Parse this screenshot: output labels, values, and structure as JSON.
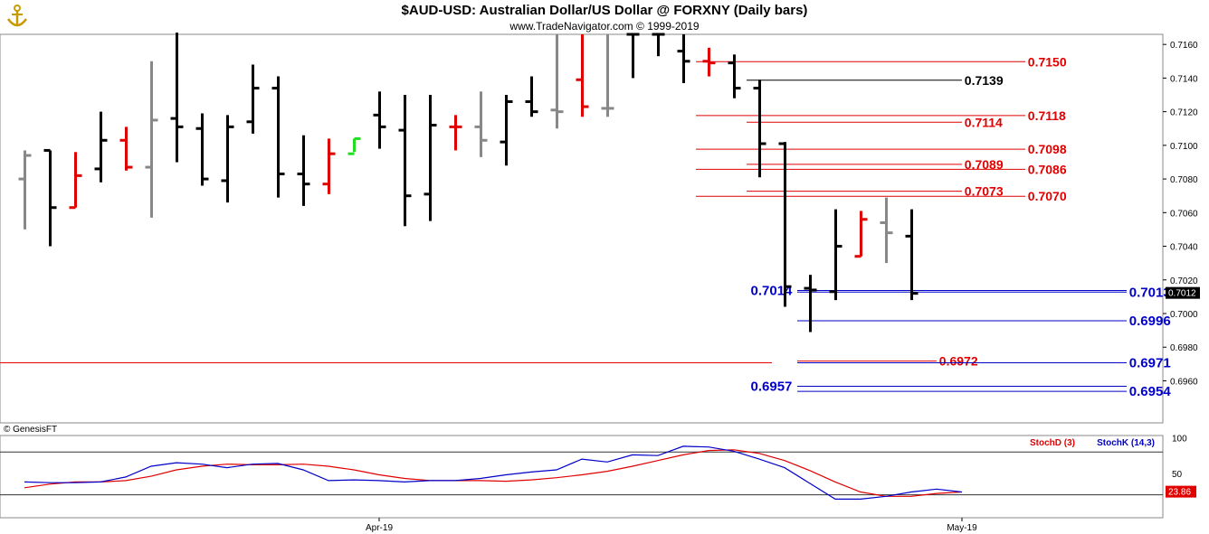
{
  "header": {
    "title": "$AUD-USD:  Australian Dollar/US Dollar @ FORXNY  (Daily bars)",
    "subtitle": "www.TradeNavigator.com © 1999-2019",
    "logo_icon": "trade-navigator-anchor-icon"
  },
  "footer": {
    "copyright": "© GenesisFT"
  },
  "colors": {
    "black_bar": "#000000",
    "red_bar": "#e00000",
    "gray_bar": "#888888",
    "green_bar": "#22dd22",
    "red_level": "#e00000",
    "black_level": "#000000",
    "blue_level": "#0000c8",
    "stochD": "#e00000",
    "stochK": "#0000c8",
    "purple_level": "#800080"
  },
  "chart_data": [
    {
      "type": "ohlc",
      "y_range": [
        0.6935,
        0.7166
      ],
      "y_ticks": [
        "0.7160",
        "0.7140",
        "0.7120",
        "0.7100",
        "0.7080",
        "0.7060",
        "0.7040",
        "0.7020",
        "0.7000",
        "0.6980",
        "0.6960"
      ],
      "x_labels": [
        {
          "label": "Apr-19",
          "index": 14
        },
        {
          "label": "May-19",
          "index": 37
        }
      ],
      "last_price": "0.7012",
      "bars": [
        {
          "o": 0.708,
          "h": 0.7097,
          "l": 0.705,
          "c": 0.7094,
          "col": "gray"
        },
        {
          "o": 0.7097,
          "h": 0.7097,
          "l": 0.704,
          "c": 0.7063,
          "col": "black"
        },
        {
          "o": 0.7063,
          "h": 0.7096,
          "l": 0.7063,
          "c": 0.7082,
          "col": "red"
        },
        {
          "o": 0.7086,
          "h": 0.712,
          "l": 0.7078,
          "c": 0.7103,
          "col": "black"
        },
        {
          "o": 0.7103,
          "h": 0.7111,
          "l": 0.7085,
          "c": 0.7087,
          "col": "red"
        },
        {
          "o": 0.7087,
          "h": 0.715,
          "l": 0.7057,
          "c": 0.7115,
          "col": "gray"
        },
        {
          "o": 0.7116,
          "h": 0.7167,
          "l": 0.709,
          "c": 0.7111,
          "col": "black"
        },
        {
          "o": 0.711,
          "h": 0.7119,
          "l": 0.7076,
          "c": 0.708,
          "col": "black"
        },
        {
          "o": 0.7079,
          "h": 0.7118,
          "l": 0.7066,
          "c": 0.7111,
          "col": "black"
        },
        {
          "o": 0.7114,
          "h": 0.7148,
          "l": 0.7107,
          "c": 0.7134,
          "col": "black"
        },
        {
          "o": 0.7134,
          "h": 0.7141,
          "l": 0.7069,
          "c": 0.7083,
          "col": "black"
        },
        {
          "o": 0.7083,
          "h": 0.7106,
          "l": 0.7064,
          "c": 0.7077,
          "col": "black"
        },
        {
          "o": 0.7077,
          "h": 0.7104,
          "l": 0.7071,
          "c": 0.7095,
          "col": "red"
        },
        {
          "o": 0.7095,
          "h": 0.7104,
          "l": 0.7096,
          "c": 0.7104,
          "col": "green"
        },
        {
          "o": 0.7118,
          "h": 0.7132,
          "l": 0.7098,
          "c": 0.7111,
          "col": "black"
        },
        {
          "o": 0.7109,
          "h": 0.713,
          "l": 0.7052,
          "c": 0.707,
          "col": "black"
        },
        {
          "o": 0.7071,
          "h": 0.713,
          "l": 0.7055,
          "c": 0.7112,
          "col": "black"
        },
        {
          "o": 0.7111,
          "h": 0.7118,
          "l": 0.7097,
          "c": 0.7111,
          "col": "red"
        },
        {
          "o": 0.7111,
          "h": 0.7132,
          "l": 0.7093,
          "c": 0.7103,
          "col": "gray"
        },
        {
          "o": 0.7102,
          "h": 0.713,
          "l": 0.7088,
          "c": 0.7126,
          "col": "black"
        },
        {
          "o": 0.7126,
          "h": 0.7141,
          "l": 0.7117,
          "c": 0.712,
          "col": "black"
        },
        {
          "o": 0.7121,
          "h": 0.7166,
          "l": 0.711,
          "c": 0.712,
          "col": "gray"
        },
        {
          "o": 0.7139,
          "h": 0.7166,
          "l": 0.7117,
          "c": 0.7123,
          "col": "red"
        },
        {
          "o": 0.7122,
          "h": 0.7166,
          "l": 0.7117,
          "c": 0.7122,
          "col": "gray"
        },
        {
          "o": 0.7166,
          "h": 0.7166,
          "l": 0.714,
          "c": 0.7166,
          "col": "black"
        },
        {
          "o": 0.7166,
          "h": 0.7166,
          "l": 0.7153,
          "c": 0.7166,
          "col": "black"
        },
        {
          "o": 0.7156,
          "h": 0.7166,
          "l": 0.7137,
          "c": 0.715,
          "col": "black"
        },
        {
          "o": 0.715,
          "h": 0.7158,
          "l": 0.7141,
          "c": 0.7149,
          "col": "red"
        },
        {
          "o": 0.7149,
          "h": 0.7154,
          "l": 0.7128,
          "c": 0.7134,
          "col": "black"
        },
        {
          "o": 0.7134,
          "h": 0.7139,
          "l": 0.7081,
          "c": 0.7101,
          "col": "black"
        },
        {
          "o": 0.7101,
          "h": 0.7102,
          "l": 0.7004,
          "c": 0.7016,
          "col": "black"
        },
        {
          "o": 0.7015,
          "h": 0.7023,
          "l": 0.6989,
          "c": 0.7014,
          "col": "black"
        },
        {
          "o": 0.7013,
          "h": 0.7062,
          "l": 0.7008,
          "c": 0.704,
          "col": "black"
        },
        {
          "o": 0.7034,
          "h": 0.7061,
          "l": 0.7034,
          "c": 0.7056,
          "col": "red"
        },
        {
          "o": 0.7054,
          "h": 0.7069,
          "l": 0.703,
          "c": 0.7048,
          "col": "gray"
        },
        {
          "o": 0.7046,
          "h": 0.7062,
          "l": 0.7008,
          "c": 0.7012,
          "col": "black"
        }
      ],
      "levels": [
        {
          "price": 0.6971,
          "label": "",
          "color": "red",
          "from": -1,
          "to": 29.5,
          "label_at": -1,
          "label_side": "none"
        },
        {
          "price": 0.715,
          "label": "0.7150",
          "color": "red",
          "from": 26.5,
          "to": 39.5,
          "label_at": 39.6,
          "label_side": "right"
        },
        {
          "price": 0.7139,
          "label": "0.7139",
          "color": "black",
          "from": 28.5,
          "to": 37.0,
          "label_at": 37.1,
          "label_side": "right"
        },
        {
          "price": 0.7118,
          "label": "0.7118",
          "color": "red",
          "from": 26.5,
          "to": 39.5,
          "label_at": 39.6,
          "label_side": "right"
        },
        {
          "price": 0.7114,
          "label": "0.7114",
          "color": "red",
          "from": 28.5,
          "to": 37.0,
          "label_at": 37.1,
          "label_side": "right"
        },
        {
          "price": 0.7098,
          "label": "0.7098",
          "color": "red",
          "from": 26.5,
          "to": 39.5,
          "label_at": 39.6,
          "label_side": "right"
        },
        {
          "price": 0.7089,
          "label": "0.7089",
          "color": "red",
          "from": 28.5,
          "to": 37.0,
          "label_at": 37.1,
          "label_side": "right"
        },
        {
          "price": 0.7086,
          "label": "0.7086",
          "color": "red",
          "from": 26.5,
          "to": 39.5,
          "label_at": 39.6,
          "label_side": "right"
        },
        {
          "price": 0.7073,
          "label": "0.7073",
          "color": "red",
          "from": 28.5,
          "to": 37.0,
          "label_at": 37.1,
          "label_side": "right"
        },
        {
          "price": 0.707,
          "label": "0.7070",
          "color": "red",
          "from": 26.5,
          "to": 39.5,
          "label_at": 39.6,
          "label_side": "right"
        },
        {
          "price": 0.7014,
          "label": "0.7014",
          "color": "blue",
          "from": 30.5,
          "to": 43.5,
          "label_at": 30.3,
          "label_side": "left"
        },
        {
          "price": 0.7013,
          "label": "0.7013",
          "color": "blue",
          "from": 30.5,
          "to": 43.5,
          "label_at": 43.6,
          "label_side": "right"
        },
        {
          "price": 0.6996,
          "label": "0.6996",
          "color": "blue",
          "from": 30.5,
          "to": 43.5,
          "label_at": 43.6,
          "label_side": "right"
        },
        {
          "price": 0.6972,
          "label": "0.6972",
          "color": "red",
          "from": 30.5,
          "to": 36.0,
          "label_at": 36.1,
          "label_side": "right"
        },
        {
          "price": 0.6971,
          "label": "0.6971",
          "color": "blue",
          "from": 30.5,
          "to": 43.5,
          "label_at": 43.6,
          "label_side": "right"
        },
        {
          "price": 0.6957,
          "label": "0.6957",
          "color": "blue",
          "from": 30.5,
          "to": 43.5,
          "label_at": 30.3,
          "label_side": "left"
        },
        {
          "price": 0.6954,
          "label": "0.6954",
          "color": "blue",
          "from": 30.5,
          "to": 43.5,
          "label_at": 43.6,
          "label_side": "right"
        }
      ]
    },
    {
      "type": "line",
      "indicator": "Stochastics",
      "y_range": [
        -12,
        103
      ],
      "y_ticks": [
        "100",
        "50"
      ],
      "ref_lines": [
        80,
        20
      ],
      "last_value": "23.86",
      "series": [
        {
          "name": "StochD (3)",
          "color": "red",
          "values": [
            30,
            35,
            38,
            38,
            40,
            46,
            55,
            60,
            63,
            62,
            62,
            63,
            60,
            55,
            48,
            43,
            40,
            40,
            40,
            39,
            41,
            44,
            48,
            53,
            60,
            68,
            76,
            82,
            83,
            78,
            68,
            54,
            38,
            24,
            18,
            18,
            22,
            24
          ]
        },
        {
          "name": "StochK (14,3)",
          "color": "blue",
          "values": [
            38,
            37,
            37,
            38,
            45,
            60,
            65,
            63,
            58,
            63,
            64,
            55,
            40,
            41,
            40,
            38,
            40,
            40,
            43,
            48,
            52,
            55,
            70,
            66,
            76,
            75,
            88,
            87,
            81,
            70,
            58,
            36,
            14,
            14,
            18,
            24,
            28,
            24
          ]
        }
      ]
    }
  ]
}
